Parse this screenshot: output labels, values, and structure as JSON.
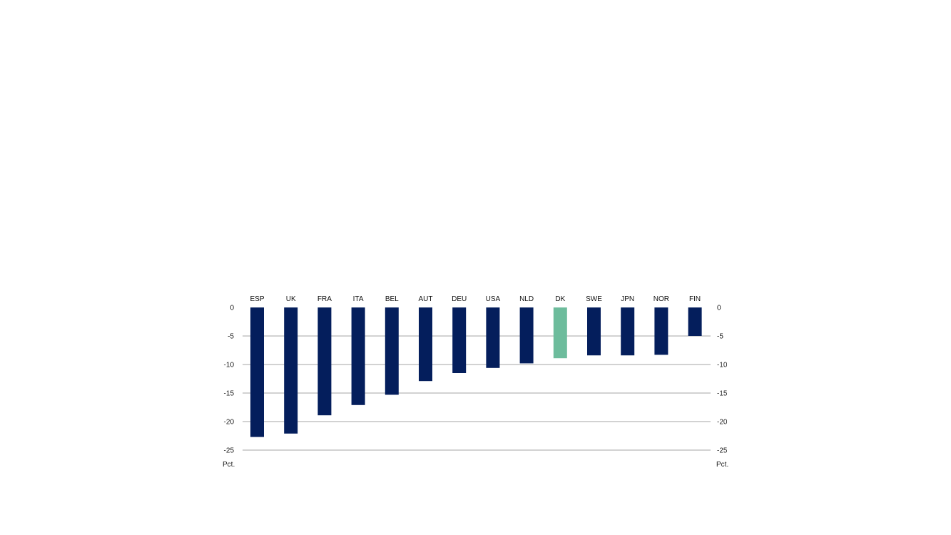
{
  "chart_data": {
    "type": "bar",
    "categories": [
      "ESP",
      "UK",
      "FRA",
      "ITA",
      "BEL",
      "AUT",
      "DEU",
      "USA",
      "NLD",
      "DK",
      "SWE",
      "JPN",
      "NOR",
      "FIN"
    ],
    "values": [
      -22.7,
      -22.1,
      -18.9,
      -17.1,
      -15.3,
      -12.9,
      -11.5,
      -10.6,
      -9.8,
      -8.9,
      -8.4,
      -8.4,
      -8.3,
      -5.0
    ],
    "highlight": "DK",
    "ylim": [
      -25,
      0
    ],
    "yticks": [
      0,
      -5,
      -10,
      -15,
      -20,
      -25
    ],
    "ylabel_left": "Pct.",
    "ylabel_right": "Pct.",
    "grid": true,
    "colors": {
      "bar": "#041e5c",
      "highlight": "#6dbc9c",
      "grid": "#a6a6a6"
    }
  }
}
